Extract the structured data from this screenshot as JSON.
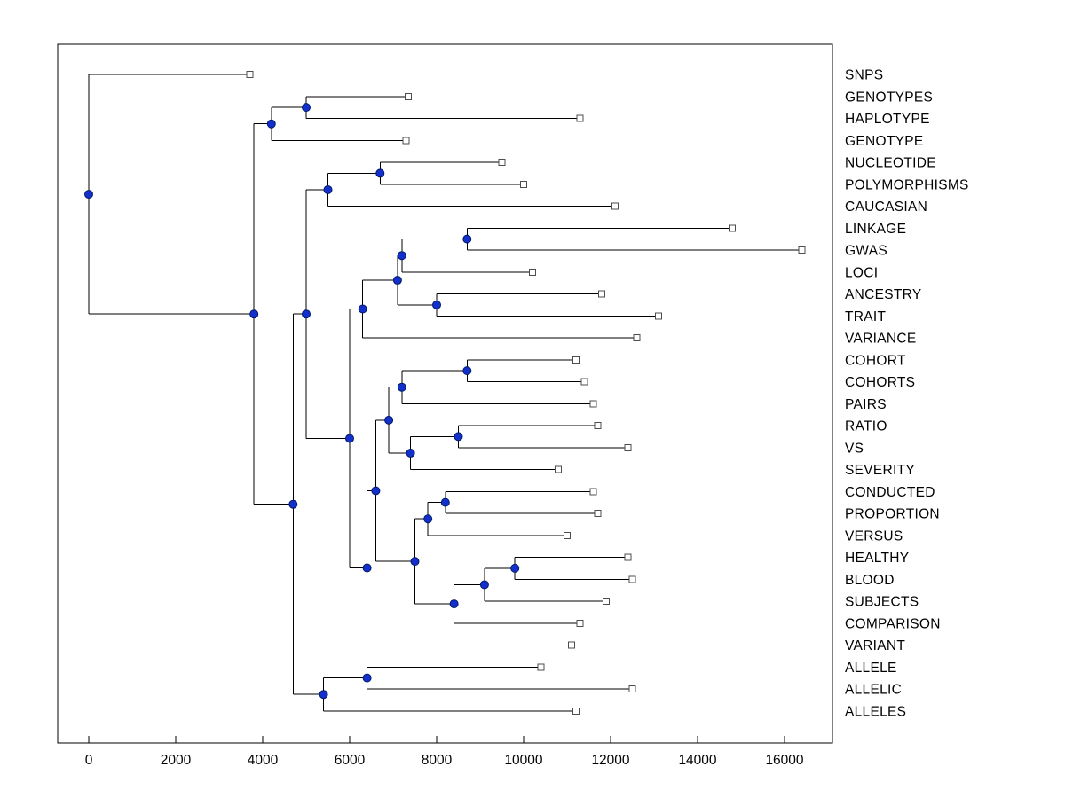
{
  "figure": {
    "background": "#ffffff",
    "frame_color": "#000000",
    "branch_color": "#000000",
    "internal_node_fill": "#1330cc",
    "internal_node_stroke": "#001a66",
    "leaf_marker_fill": "#ffffff",
    "leaf_marker_stroke": "#4d4d4d"
  },
  "chart_data": {
    "type": "dendrogram",
    "orientation": "horizontal",
    "title": "",
    "xlabel": "",
    "ylabel": "",
    "legend": "none",
    "grid": false,
    "x_axis": {
      "ticks": [
        0,
        2000,
        4000,
        6000,
        8000,
        10000,
        12000,
        14000,
        16000
      ],
      "tick_labels": [
        "0",
        "2000",
        "4000",
        "6000",
        "8000",
        "10000",
        "12000",
        "14000",
        "16000"
      ],
      "range": [
        -700,
        17100
      ]
    },
    "leaf_labels": [
      "SNPS",
      "GENOTYPES",
      "HAPLOTYPE",
      "GENOTYPE",
      "NUCLEOTIDE",
      "POLYMORPHISMS",
      "CAUCASIAN",
      "LINKAGE",
      "GWAS",
      "LOCI",
      "ANCESTRY",
      "TRAIT",
      "VARIANCE",
      "COHORT",
      "COHORTS",
      "PAIRS",
      "RATIO",
      "VS",
      "SEVERITY",
      "CONDUCTED",
      "PROPORTION",
      "VERSUS",
      "HEALTHY",
      "BLOOD",
      "SUBJECTS",
      "COMPARISON",
      "VARIANT",
      "ALLELE",
      "ALLELIC",
      "ALLELES"
    ],
    "leaf_values": [
      3700,
      7350,
      11300,
      7300,
      9500,
      10000,
      12100,
      14800,
      16400,
      10200,
      11800,
      13100,
      12600,
      11200,
      11400,
      11600,
      11700,
      12400,
      10800,
      11600,
      11700,
      11000,
      12400,
      12500,
      11900,
      11300,
      11100,
      10400,
      12500,
      11200
    ],
    "tree": {
      "v": 0,
      "c": [
        {
          "label": "SNPS",
          "v": 3700
        },
        {
          "v": 3800,
          "c": [
            {
              "v": 4200,
              "c": [
                {
                  "v": 5000,
                  "c": [
                    {
                      "label": "GENOTYPES",
                      "v": 7350
                    },
                    {
                      "label": "HAPLOTYPE",
                      "v": 11300
                    }
                  ]
                },
                {
                  "label": "GENOTYPE",
                  "v": 7300
                }
              ]
            },
            {
              "v": 4700,
              "c": [
                {
                  "v": 5000,
                  "c": [
                    {
                      "v": 5500,
                      "c": [
                        {
                          "v": 6700,
                          "c": [
                            {
                              "label": "NUCLEOTIDE",
                              "v": 9500
                            },
                            {
                              "label": "POLYMORPHISMS",
                              "v": 10000
                            }
                          ]
                        },
                        {
                          "label": "CAUCASIAN",
                          "v": 12100
                        }
                      ]
                    },
                    {
                      "v": 6000,
                      "c": [
                        {
                          "v": 6300,
                          "c": [
                            {
                              "v": 7100,
                              "c": [
                                {
                                  "v": 7200,
                                  "c": [
                                    {
                                      "v": 8700,
                                      "c": [
                                        {
                                          "label": "LINKAGE",
                                          "v": 14800
                                        },
                                        {
                                          "label": "GWAS",
                                          "v": 16400
                                        }
                                      ]
                                    },
                                    {
                                      "label": "LOCI",
                                      "v": 10200
                                    }
                                  ]
                                },
                                {
                                  "v": 8000,
                                  "c": [
                                    {
                                      "label": "ANCESTRY",
                                      "v": 11800
                                    },
                                    {
                                      "label": "TRAIT",
                                      "v": 13100
                                    }
                                  ]
                                }
                              ]
                            },
                            {
                              "label": "VARIANCE",
                              "v": 12600
                            }
                          ]
                        },
                        {
                          "v": 6400,
                          "c": [
                            {
                              "v": 6600,
                              "c": [
                                {
                                  "v": 6900,
                                  "c": [
                                    {
                                      "v": 7200,
                                      "c": [
                                        {
                                          "v": 8700,
                                          "c": [
                                            {
                                              "label": "COHORT",
                                              "v": 11200
                                            },
                                            {
                                              "label": "COHORTS",
                                              "v": 11400
                                            }
                                          ]
                                        },
                                        {
                                          "label": "PAIRS",
                                          "v": 11600
                                        }
                                      ]
                                    },
                                    {
                                      "v": 7400,
                                      "c": [
                                        {
                                          "v": 8500,
                                          "c": [
                                            {
                                              "label": "RATIO",
                                              "v": 11700
                                            },
                                            {
                                              "label": "VS",
                                              "v": 12400
                                            }
                                          ]
                                        },
                                        {
                                          "label": "SEVERITY",
                                          "v": 10800
                                        }
                                      ]
                                    }
                                  ]
                                },
                                {
                                  "v": 7500,
                                  "c": [
                                    {
                                      "v": 7800,
                                      "c": [
                                        {
                                          "v": 8200,
                                          "c": [
                                            {
                                              "label": "CONDUCTED",
                                              "v": 11600
                                            },
                                            {
                                              "label": "PROPORTION",
                                              "v": 11700
                                            }
                                          ]
                                        },
                                        {
                                          "label": "VERSUS",
                                          "v": 11000
                                        }
                                      ]
                                    },
                                    {
                                      "v": 8400,
                                      "c": [
                                        {
                                          "v": 9100,
                                          "c": [
                                            {
                                              "v": 9800,
                                              "c": [
                                                {
                                                  "label": "HEALTHY",
                                                  "v": 12400
                                                },
                                                {
                                                  "label": "BLOOD",
                                                  "v": 12500
                                                }
                                              ]
                                            },
                                            {
                                              "label": "SUBJECTS",
                                              "v": 11900
                                            }
                                          ]
                                        },
                                        {
                                          "label": "COMPARISON",
                                          "v": 11300
                                        }
                                      ]
                                    }
                                  ]
                                }
                              ]
                            },
                            {
                              "label": "VARIANT",
                              "v": 11100
                            }
                          ]
                        }
                      ]
                    }
                  ]
                },
                {
                  "v": 5400,
                  "c": [
                    {
                      "v": 6400,
                      "c": [
                        {
                          "label": "ALLELE",
                          "v": 10400
                        },
                        {
                          "label": "ALLELIC",
                          "v": 12500
                        }
                      ]
                    },
                    {
                      "label": "ALLELES",
                      "v": 11200
                    }
                  ]
                }
              ]
            }
          ]
        }
      ]
    }
  }
}
